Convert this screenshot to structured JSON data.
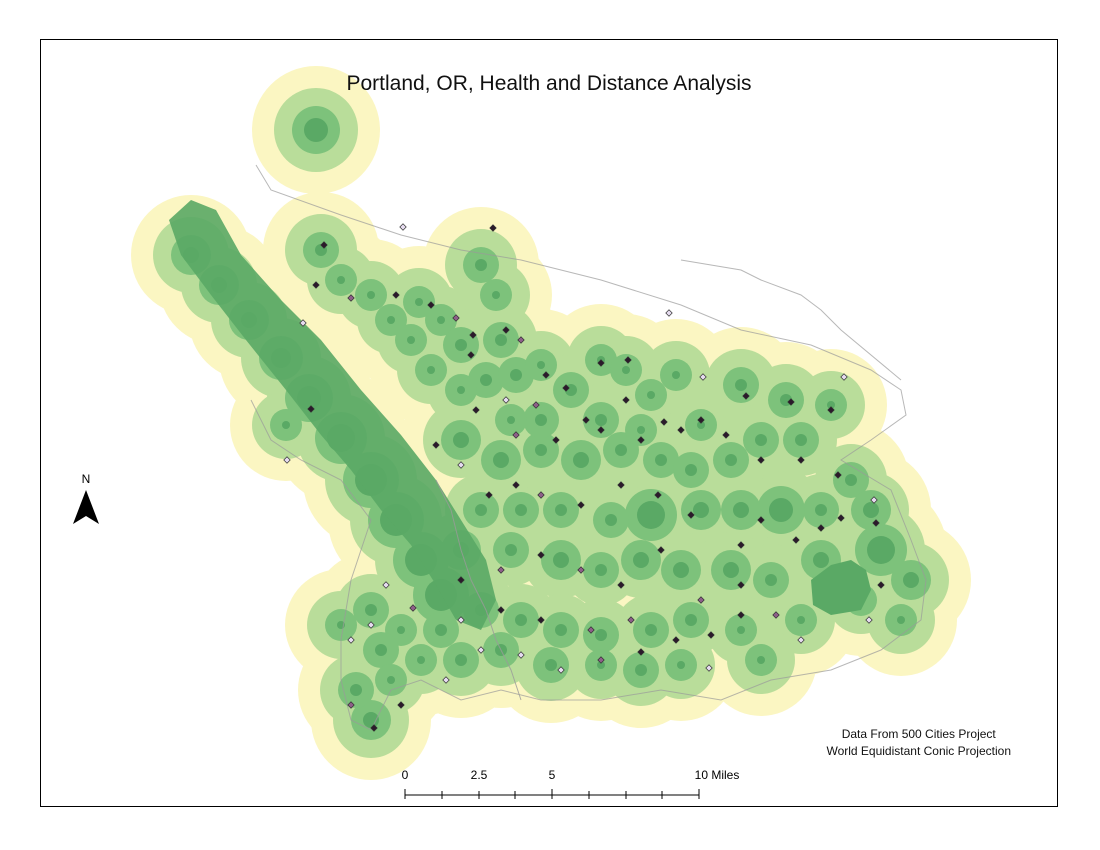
{
  "map": {
    "title": "Portland, OR, Health and Distance Analysis",
    "north_arrow_label": "N",
    "credits": {
      "line1": "Data From 500 Cities Project",
      "line2": "World Equidistant Conic Projection"
    },
    "scale_bar": {
      "labels": [
        "0",
        "2.5",
        "5",
        "10 Miles"
      ],
      "unit": "Miles"
    },
    "colors": {
      "outer_buffer": "#fbf6c2",
      "middle_buffer": "#b9dd9a",
      "inner_buffer": "#7dc27b",
      "core": "#5aa965",
      "boundary_lines": "#9a9a9a",
      "point_dark": "#2b1a2b",
      "point_medium": "#8d5f88",
      "point_light": "#e6dcf0"
    }
  }
}
